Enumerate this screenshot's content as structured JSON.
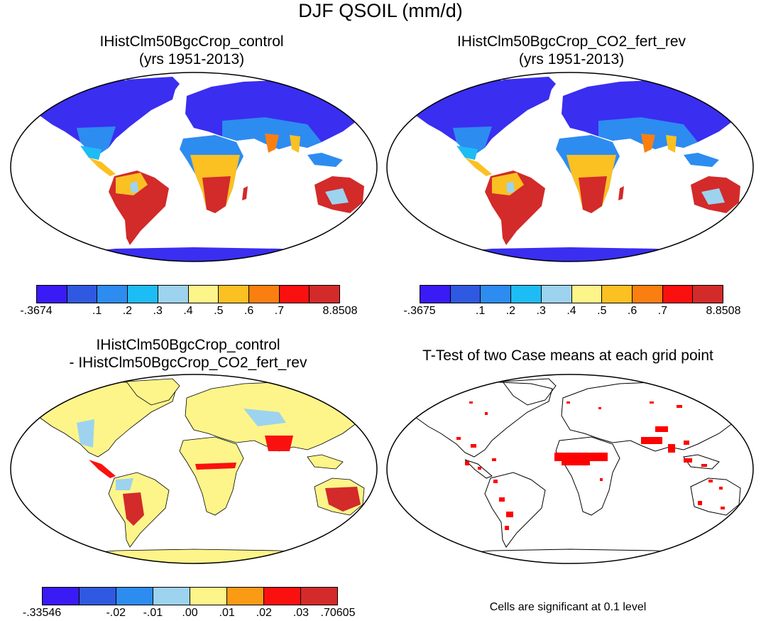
{
  "figure_title": "DJF QSOIL (mm/d)",
  "panels": [
    {
      "title_line1": "IHistClm50BgcCrop_control",
      "title_line2": "(yrs 1951-2013)",
      "colorbar": {
        "colors": [
          "#3a1af5",
          "#2f59e0",
          "#2d8cf0",
          "#1ebcf5",
          "#9dd3ef",
          "#fdf58a",
          "#fbc022",
          "#fb7f10",
          "#fb1010",
          "#d32a2a"
        ],
        "labels": [
          "-.3674",
          ".1",
          ".2",
          ".3",
          ".4",
          ".5",
          ".6",
          ".7",
          "8.8508"
        ]
      }
    },
    {
      "title_line1": "IHistClm50BgcCrop_CO2_fert_rev",
      "title_line2": "(yrs 1951-2013)",
      "colorbar": {
        "colors": [
          "#3a1af5",
          "#2f59e0",
          "#2d8cf0",
          "#1ebcf5",
          "#9dd3ef",
          "#fdf58a",
          "#fbc022",
          "#fb7f10",
          "#fb1010",
          "#d32a2a"
        ],
        "labels": [
          "-.3675",
          ".1",
          ".2",
          ".3",
          ".4",
          ".5",
          ".6",
          ".7",
          "8.8508"
        ]
      }
    },
    {
      "title_line1": "IHistClm50BgcCrop_control",
      "title_line2": "- IHistClm50BgcCrop_CO2_fert_rev",
      "colorbar": {
        "colors": [
          "#3a1af5",
          "#2f59e0",
          "#2d8cf0",
          "#9dd3ef",
          "#fdf58a",
          "#fb9a14",
          "#fb1010",
          "#d32a2a"
        ],
        "labels": [
          "-.33546",
          "-.02",
          "-.01",
          ".00",
          ".01",
          ".02",
          ".03",
          ".70605"
        ]
      }
    },
    {
      "title_line1": "T-Test of two Case means at each grid point",
      "note": "Cells are significant at 0.1 level"
    }
  ],
  "colors": {
    "land_cold": "#3a2ef0",
    "land_mid": "#2d8cf0",
    "land_warm": "#d32a2a",
    "diff_land": "#fdf58a",
    "significant": "#ff0000",
    "ocean": "#ffffff"
  }
}
